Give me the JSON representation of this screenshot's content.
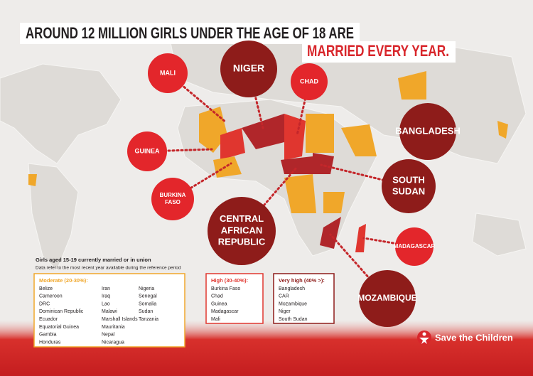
{
  "header": {
    "title_line1": "AROUND 12 MILLION GIRLS UNDER THE AGE OF 18 ARE",
    "title_line2": "MARRIED EVERY YEAR."
  },
  "callouts": [
    {
      "lines": [
        "MALI"
      ]
    },
    {
      "lines": [
        "NIGER"
      ]
    },
    {
      "lines": [
        "CHAD"
      ]
    },
    {
      "lines": [
        "GUINEA"
      ]
    },
    {
      "lines": [
        "BANGLADESH"
      ]
    },
    {
      "lines": [
        "BURKINA",
        "FASO"
      ]
    },
    {
      "lines": [
        "SOUTH",
        "SUDAN"
      ]
    },
    {
      "lines": [
        "CENTRAL",
        "AFRICAN",
        "REPUBLIC"
      ]
    },
    {
      "lines": [
        "MADAGASCAR"
      ]
    },
    {
      "lines": [
        "MOZAMBIQUE"
      ]
    }
  ],
  "legend": {
    "heading": "Girls aged 15-19 currently married or in union",
    "note": "Data refer to the most recent year available during the reference period",
    "groups": [
      {
        "title": "Moderate (20-30%):",
        "columns": [
          [
            "Belize",
            "Cameroon",
            "DRC",
            "Dominican Republic",
            "Ecuador",
            "Equatorial Guinea",
            "Gambia",
            "Honduras"
          ],
          [
            "Iran",
            "Iraq",
            "Lao",
            "Malawi",
            "Marshall Islands",
            "Mauritania",
            "Nepal",
            "Nicaragua"
          ],
          [
            "Nigeria",
            "Senegal",
            "Somalia",
            "Sudan",
            "Tanzania"
          ]
        ]
      },
      {
        "title": "High (30-40%):",
        "columns": [
          [
            "Burkina Faso",
            "Chad",
            "Guinea",
            "Madagascar",
            "Mali"
          ]
        ]
      },
      {
        "title": "Very high (40% >):",
        "columns": [
          [
            "Bangladesh",
            "CAR",
            "Mozambique",
            "Niger",
            "South Sudan"
          ]
        ]
      }
    ]
  },
  "logo": "Save the Children"
}
